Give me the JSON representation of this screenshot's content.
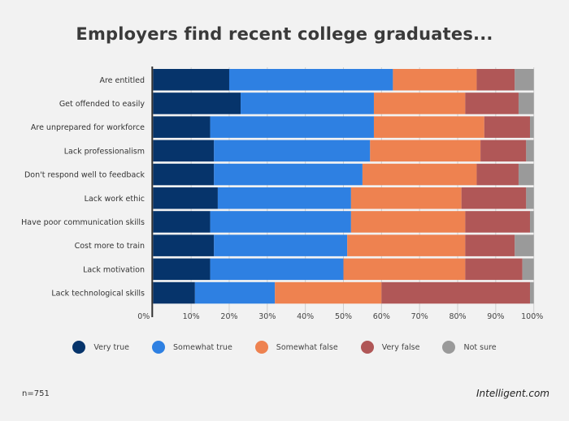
{
  "chart_data": {
    "type": "bar",
    "orientation": "horizontal",
    "stacked": true,
    "title": "Employers find recent college graduates...",
    "categories": [
      "Are entitled",
      "Get offended to easily",
      "Are unprepared for workforce",
      "Lack professionalism",
      "Don't respond well to feedback",
      "Lack work ethic",
      "Have poor communication skills",
      "Cost more to train",
      "Lack motivation",
      "Lack technological skills"
    ],
    "series": [
      {
        "name": "Very true",
        "color": "#06346b",
        "values": [
          20,
          23,
          15,
          16,
          16,
          17,
          15,
          16,
          15,
          11
        ]
      },
      {
        "name": "Somewhat true",
        "color": "#2e80e2",
        "values": [
          43,
          35,
          43,
          41,
          39,
          35,
          37,
          35,
          35,
          21
        ]
      },
      {
        "name": "Somewhat false",
        "color": "#ee8250",
        "values": [
          22,
          24,
          29,
          29,
          30,
          29,
          30,
          31,
          32,
          28
        ]
      },
      {
        "name": "Very false",
        "color": "#b05757",
        "values": [
          10,
          14,
          12,
          12,
          11,
          17,
          17,
          13,
          15,
          39
        ]
      },
      {
        "name": "Not sure",
        "color": "#9a9a9a",
        "values": [
          5,
          4,
          1,
          2,
          4,
          2,
          1,
          5,
          3,
          1
        ]
      }
    ],
    "xlim": [
      0,
      100
    ],
    "xticks": [
      "0%",
      "10%",
      "20%",
      "30%",
      "40%",
      "50%",
      "60%",
      "70%",
      "80%",
      "90%",
      "100%"
    ],
    "grid": true,
    "legend": "bottom"
  },
  "footer": {
    "n": "n=751",
    "brand": "Intelligent.com"
  }
}
